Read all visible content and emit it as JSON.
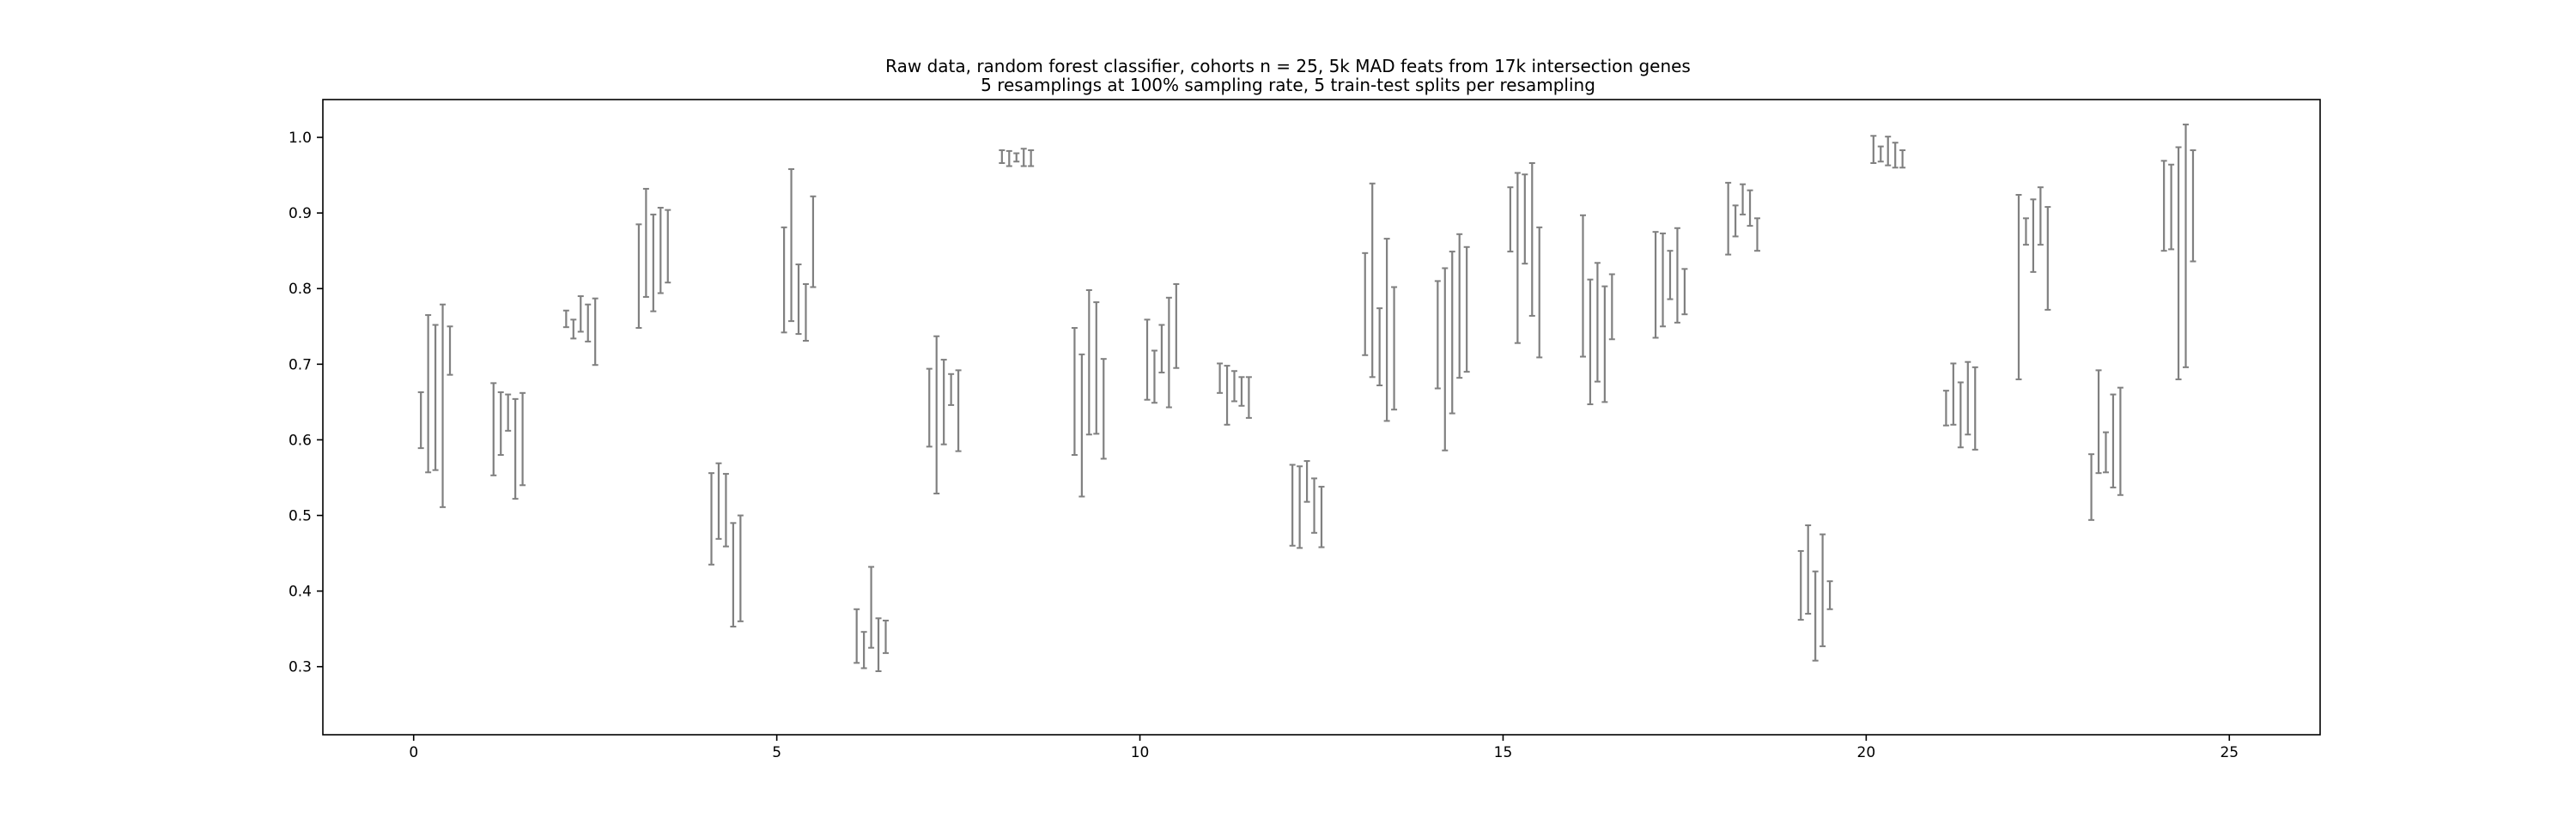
{
  "chart_data": {
    "type": "errorbar",
    "title": "Raw data, random forest classifier, cohorts n = 25, 5k MAD feats from 17k intersection genes",
    "subtitle": "5 resamplings at 100% sampling rate, 5 train-test splits per resampling",
    "xlabel": "",
    "ylabel": "",
    "xlim": [
      -1.25,
      26.25
    ],
    "ylim": [
      0.21,
      1.05
    ],
    "grid": false,
    "x_ticks": [
      0,
      5,
      10,
      15,
      20,
      25
    ],
    "y_ticks": [
      0.3,
      0.4,
      0.5,
      0.6,
      0.7,
      0.8,
      0.9,
      1.0
    ],
    "x_tick_labels": [
      "0",
      "5",
      "10",
      "15",
      "20",
      "25"
    ],
    "y_tick_labels": [
      "0.3",
      "0.4",
      "0.5",
      "0.6",
      "0.7",
      "0.8",
      "0.9",
      "1.0"
    ],
    "bar_color": "#808080",
    "resampling_offsets": [
      0.1,
      0.2,
      0.3,
      0.4,
      0.5
    ],
    "cohorts": [
      {
        "x": 0,
        "intervals": [
          [
            0.589,
            0.663
          ],
          [
            0.557,
            0.765
          ],
          [
            0.56,
            0.752
          ],
          [
            0.511,
            0.779
          ],
          [
            0.686,
            0.75
          ]
        ]
      },
      {
        "x": 1,
        "intervals": [
          [
            0.553,
            0.675
          ],
          [
            0.58,
            0.663
          ],
          [
            0.612,
            0.66
          ],
          [
            0.522,
            0.654
          ],
          [
            0.54,
            0.662
          ]
        ]
      },
      {
        "x": 2,
        "intervals": [
          [
            0.749,
            0.771
          ],
          [
            0.734,
            0.759
          ],
          [
            0.743,
            0.79
          ],
          [
            0.73,
            0.779
          ],
          [
            0.699,
            0.787
          ]
        ]
      },
      {
        "x": 3,
        "intervals": [
          [
            0.748,
            0.885
          ],
          [
            0.789,
            0.932
          ],
          [
            0.77,
            0.898
          ],
          [
            0.794,
            0.907
          ],
          [
            0.808,
            0.904
          ]
        ]
      },
      {
        "x": 4,
        "intervals": [
          [
            0.435,
            0.556
          ],
          [
            0.469,
            0.569
          ],
          [
            0.459,
            0.555
          ],
          [
            0.353,
            0.49
          ],
          [
            0.36,
            0.5
          ]
        ]
      },
      {
        "x": 5,
        "intervals": [
          [
            0.742,
            0.881
          ],
          [
            0.757,
            0.958
          ],
          [
            0.74,
            0.832
          ],
          [
            0.731,
            0.806
          ],
          [
            0.802,
            0.922
          ]
        ]
      },
      {
        "x": 6,
        "intervals": [
          [
            0.305,
            0.376
          ],
          [
            0.298,
            0.346
          ],
          [
            0.325,
            0.432
          ],
          [
            0.294,
            0.364
          ],
          [
            0.318,
            0.361
          ]
        ]
      },
      {
        "x": 7,
        "intervals": [
          [
            0.591,
            0.694
          ],
          [
            0.529,
            0.737
          ],
          [
            0.594,
            0.706
          ],
          [
            0.646,
            0.687
          ],
          [
            0.585,
            0.692
          ]
        ]
      },
      {
        "x": 8,
        "intervals": [
          [
            0.966,
            0.983
          ],
          [
            0.962,
            0.982
          ],
          [
            0.968,
            0.979
          ],
          [
            0.962,
            0.985
          ],
          [
            0.962,
            0.983
          ]
        ]
      },
      {
        "x": 9,
        "intervals": [
          [
            0.58,
            0.748
          ],
          [
            0.525,
            0.713
          ],
          [
            0.607,
            0.798
          ],
          [
            0.608,
            0.782
          ],
          [
            0.575,
            0.707
          ]
        ]
      },
      {
        "x": 10,
        "intervals": [
          [
            0.653,
            0.759
          ],
          [
            0.649,
            0.718
          ],
          [
            0.689,
            0.752
          ],
          [
            0.643,
            0.788
          ],
          [
            0.695,
            0.806
          ]
        ]
      },
      {
        "x": 11,
        "intervals": [
          [
            0.662,
            0.701
          ],
          [
            0.62,
            0.698
          ],
          [
            0.651,
            0.691
          ],
          [
            0.645,
            0.683
          ],
          [
            0.629,
            0.683
          ]
        ]
      },
      {
        "x": 12,
        "intervals": [
          [
            0.46,
            0.567
          ],
          [
            0.457,
            0.565
          ],
          [
            0.518,
            0.572
          ],
          [
            0.477,
            0.549
          ],
          [
            0.458,
            0.538
          ]
        ]
      },
      {
        "x": 13,
        "intervals": [
          [
            0.712,
            0.847
          ],
          [
            0.683,
            0.939
          ],
          [
            0.672,
            0.774
          ],
          [
            0.625,
            0.866
          ],
          [
            0.64,
            0.802
          ]
        ]
      },
      {
        "x": 14,
        "intervals": [
          [
            0.668,
            0.81
          ],
          [
            0.586,
            0.827
          ],
          [
            0.635,
            0.849
          ],
          [
            0.682,
            0.872
          ],
          [
            0.69,
            0.855
          ]
        ]
      },
      {
        "x": 15,
        "intervals": [
          [
            0.849,
            0.934
          ],
          [
            0.728,
            0.953
          ],
          [
            0.833,
            0.951
          ],
          [
            0.764,
            0.966
          ],
          [
            0.709,
            0.881
          ]
        ]
      },
      {
        "x": 16,
        "intervals": [
          [
            0.71,
            0.897
          ],
          [
            0.647,
            0.812
          ],
          [
            0.677,
            0.834
          ],
          [
            0.65,
            0.803
          ],
          [
            0.733,
            0.819
          ]
        ]
      },
      {
        "x": 17,
        "intervals": [
          [
            0.735,
            0.875
          ],
          [
            0.75,
            0.873
          ],
          [
            0.786,
            0.85
          ],
          [
            0.755,
            0.88
          ],
          [
            0.766,
            0.826
          ]
        ]
      },
      {
        "x": 18,
        "intervals": [
          [
            0.845,
            0.94
          ],
          [
            0.869,
            0.91
          ],
          [
            0.898,
            0.938
          ],
          [
            0.883,
            0.93
          ],
          [
            0.85,
            0.893
          ]
        ]
      },
      {
        "x": 19,
        "intervals": [
          [
            0.362,
            0.453
          ],
          [
            0.37,
            0.487
          ],
          [
            0.308,
            0.426
          ],
          [
            0.327,
            0.475
          ],
          [
            0.376,
            0.413
          ]
        ]
      },
      {
        "x": 20,
        "intervals": [
          [
            0.966,
            1.002
          ],
          [
            0.968,
            0.988
          ],
          [
            0.963,
            1.001
          ],
          [
            0.96,
            0.993
          ],
          [
            0.96,
            0.983
          ]
        ]
      },
      {
        "x": 21,
        "intervals": [
          [
            0.619,
            0.665
          ],
          [
            0.62,
            0.701
          ],
          [
            0.59,
            0.676
          ],
          [
            0.607,
            0.703
          ],
          [
            0.587,
            0.696
          ]
        ]
      },
      {
        "x": 22,
        "intervals": [
          [
            0.68,
            0.924
          ],
          [
            0.858,
            0.893
          ],
          [
            0.822,
            0.918
          ],
          [
            0.858,
            0.934
          ],
          [
            0.772,
            0.908
          ]
        ]
      },
      {
        "x": 23,
        "intervals": [
          [
            0.494,
            0.581
          ],
          [
            0.556,
            0.692
          ],
          [
            0.557,
            0.61
          ],
          [
            0.537,
            0.66
          ],
          [
            0.527,
            0.669
          ]
        ]
      },
      {
        "x": 24,
        "intervals": [
          [
            0.85,
            0.969
          ],
          [
            0.852,
            0.964
          ],
          [
            0.68,
            0.987
          ],
          [
            0.696,
            1.017
          ],
          [
            0.836,
            0.983
          ]
        ]
      }
    ]
  }
}
